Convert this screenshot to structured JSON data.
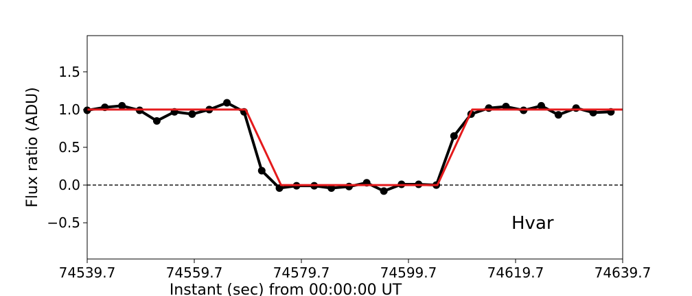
{
  "chart_data": {
    "type": "line",
    "xlabel": "Instant (sec) from 00:00:00 UT",
    "ylabel": "Flux ratio (ADU)",
    "annotation": "Hvar",
    "xlim": [
      74539.7,
      74639.7
    ],
    "xticks": [
      74539.7,
      74559.7,
      74579.7,
      74599.7,
      74619.7,
      74639.7
    ],
    "ylim": [
      -0.98,
      1.98
    ],
    "yticks": [
      {
        "value": -0.5,
        "label": "−0.5"
      },
      {
        "value": 0,
        "label": "0.0"
      },
      0.5,
      {
        "value": 1,
        "label": "1.0"
      },
      1.5
    ],
    "reference_line": 0,
    "series": [
      {
        "color": "#000000",
        "markers": true,
        "x": [
          74539.7,
          74543.0,
          74546.2,
          74549.5,
          74552.7,
          74556.0,
          74559.3,
          74562.5,
          74565.8,
          74569.0,
          74572.3,
          74575.6,
          74578.8,
          74582.1,
          74585.3,
          74588.6,
          74591.9,
          74595.1,
          74598.4,
          74601.6,
          74604.9,
          74608.2,
          74611.4,
          74614.7,
          74617.9,
          74621.2,
          74624.5,
          74627.7,
          74631.0,
          74634.2,
          74637.5
        ],
        "values": [
          0.99,
          1.03,
          1.05,
          0.99,
          0.85,
          0.97,
          0.94,
          1.0,
          1.09,
          0.97,
          0.19,
          -0.04,
          -0.01,
          -0.01,
          -0.04,
          -0.02,
          0.03,
          -0.08,
          0.01,
          0.01,
          0.0,
          0.65,
          0.94,
          1.02,
          1.04,
          0.99,
          1.05,
          0.93,
          1.02,
          0.96,
          0.97
        ]
      },
      {
        "color": "#e41a1c",
        "markers": false,
        "x": [
          74539.7,
          74569.3,
          74575.9,
          74605.1,
          74611.6,
          74639.7
        ],
        "values": [
          1,
          1,
          0,
          0,
          1,
          1
        ]
      }
    ]
  }
}
